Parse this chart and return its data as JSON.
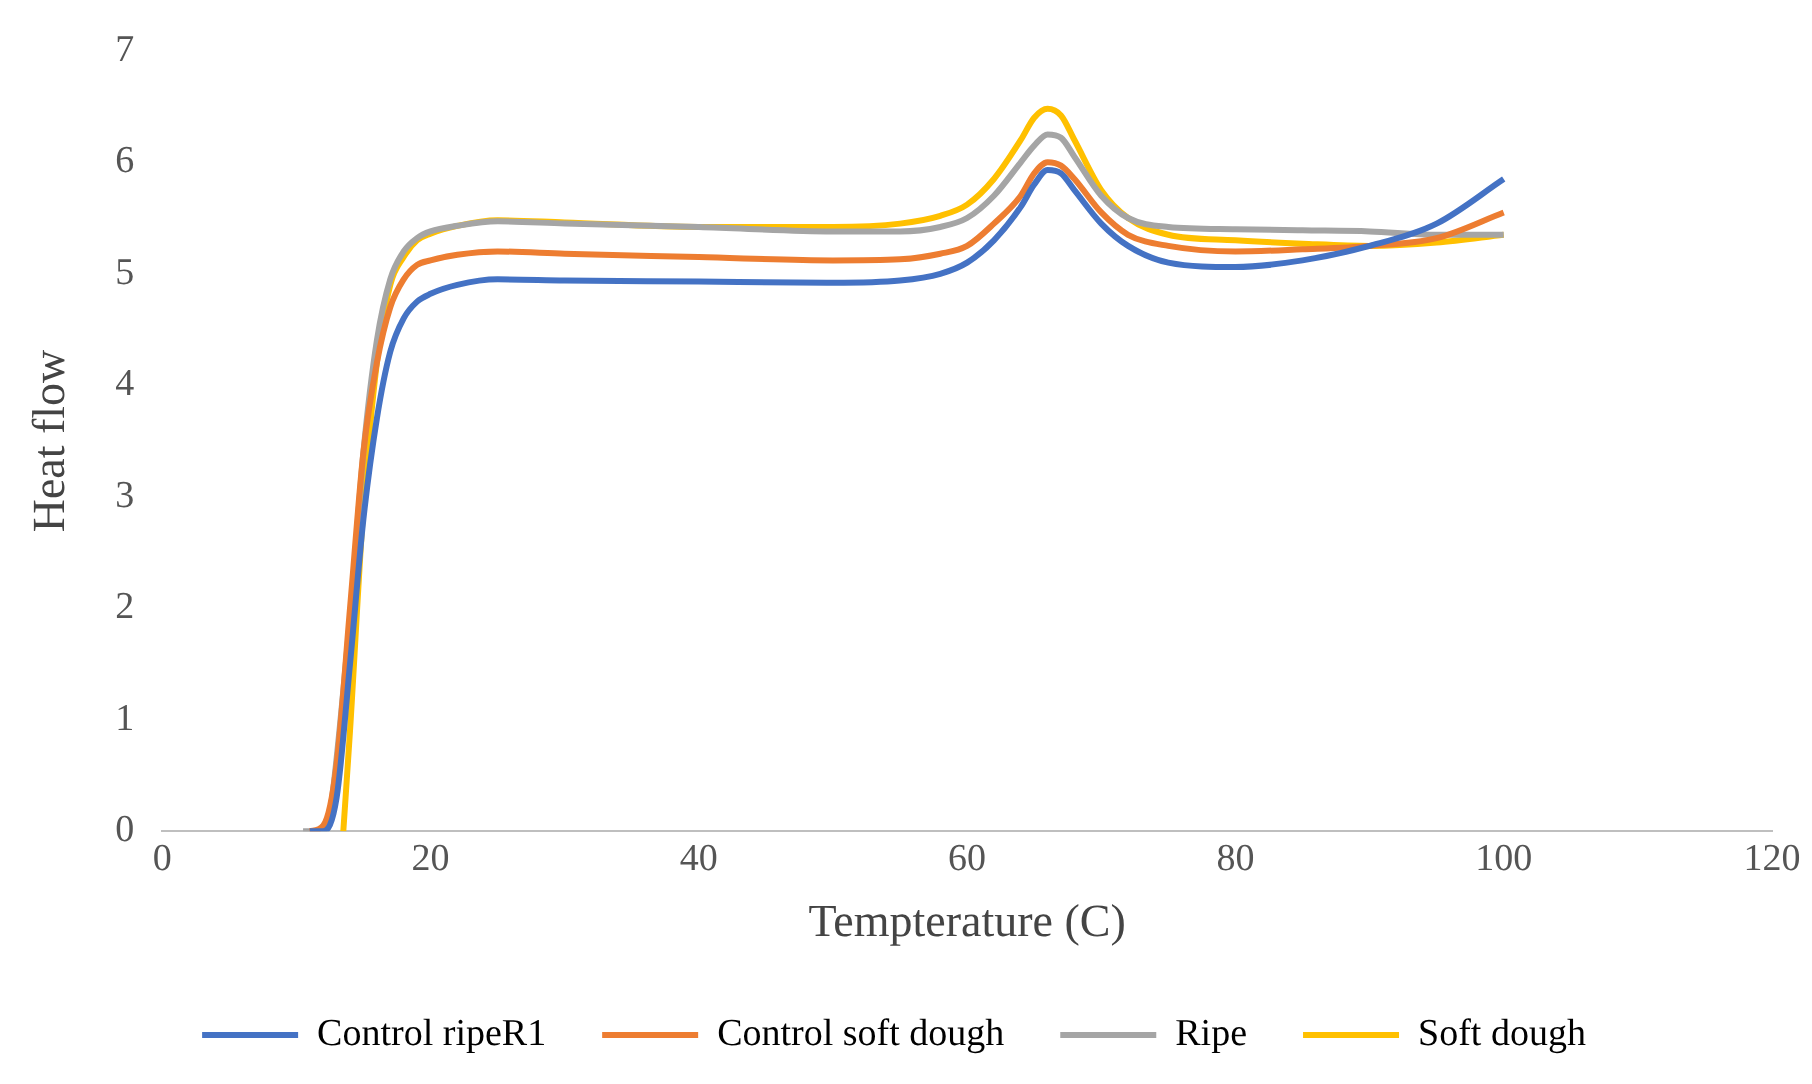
{
  "chart_data": {
    "type": "line",
    "xlabel": "Tempterature (C)",
    "ylabel": "Heat flow",
    "xlim": [
      0,
      120
    ],
    "xticks": [
      0,
      20,
      40,
      60,
      80,
      100,
      120
    ],
    "ylim": [
      0,
      7
    ],
    "yticks": [
      0,
      1,
      2,
      3,
      4,
      5,
      6,
      7
    ],
    "grid": false,
    "legend": "bottom",
    "marker": "none",
    "line_style": "solid",
    "series": [
      {
        "name": "Control ripeR1",
        "color": "#4472c4",
        "x": [
          11,
          12,
          13,
          14,
          15,
          16,
          17,
          18,
          19,
          20,
          22,
          25,
          30,
          40,
          50,
          55,
          58,
          60,
          62,
          64,
          65,
          66,
          67,
          68,
          70,
          72,
          75,
          80,
          85,
          90,
          95,
          100
        ],
        "values": [
          0,
          0,
          0.3,
          1.5,
          2.8,
          3.7,
          4.3,
          4.6,
          4.75,
          4.82,
          4.9,
          4.95,
          4.94,
          4.93,
          4.92,
          4.94,
          5.0,
          5.1,
          5.3,
          5.6,
          5.8,
          5.93,
          5.9,
          5.75,
          5.45,
          5.25,
          5.1,
          5.06,
          5.12,
          5.25,
          5.45,
          5.85
        ]
      },
      {
        "name": "Control soft dough",
        "color": "#ed7d31",
        "x": [
          11,
          12,
          13,
          14,
          15,
          16,
          17,
          18,
          19,
          20,
          22,
          25,
          30,
          40,
          50,
          55,
          58,
          60,
          62,
          64,
          65,
          66,
          67,
          68,
          70,
          72,
          75,
          80,
          85,
          90,
          95,
          100
        ],
        "values": [
          0,
          0.05,
          0.6,
          2.0,
          3.4,
          4.2,
          4.7,
          4.95,
          5.08,
          5.12,
          5.17,
          5.2,
          5.18,
          5.15,
          5.12,
          5.13,
          5.18,
          5.25,
          5.45,
          5.7,
          5.9,
          6.0,
          5.97,
          5.85,
          5.55,
          5.35,
          5.25,
          5.2,
          5.22,
          5.25,
          5.32,
          5.55
        ]
      },
      {
        "name": "Ripe",
        "color": "#a5a5a5",
        "x": [
          10.5,
          12,
          14,
          15,
          16,
          17,
          18,
          19,
          20,
          22,
          25,
          30,
          40,
          50,
          55,
          58,
          60,
          62,
          64,
          65,
          66,
          67,
          68,
          70,
          72,
          75,
          80,
          85,
          90,
          95,
          100
        ],
        "values": [
          0,
          0,
          1.9,
          3.4,
          4.4,
          4.95,
          5.2,
          5.32,
          5.38,
          5.43,
          5.47,
          5.45,
          5.42,
          5.38,
          5.38,
          5.42,
          5.5,
          5.7,
          6.0,
          6.15,
          6.25,
          6.22,
          6.05,
          5.7,
          5.5,
          5.42,
          5.4,
          5.39,
          5.38,
          5.35,
          5.35
        ]
      },
      {
        "name": "Soft dough",
        "color": "#ffc000",
        "x": [
          13.5,
          14,
          15,
          16,
          17,
          18,
          19,
          20,
          22,
          25,
          30,
          40,
          50,
          55,
          58,
          60,
          62,
          64,
          65,
          66,
          67,
          68,
          70,
          72,
          75,
          80,
          85,
          90,
          95,
          100
        ],
        "values": [
          0,
          0.9,
          2.9,
          4.2,
          4.9,
          5.15,
          5.3,
          5.36,
          5.43,
          5.48,
          5.46,
          5.42,
          5.42,
          5.45,
          5.52,
          5.62,
          5.85,
          6.2,
          6.4,
          6.48,
          6.42,
          6.2,
          5.75,
          5.5,
          5.35,
          5.3,
          5.27,
          5.25,
          5.28,
          5.35
        ]
      }
    ]
  }
}
